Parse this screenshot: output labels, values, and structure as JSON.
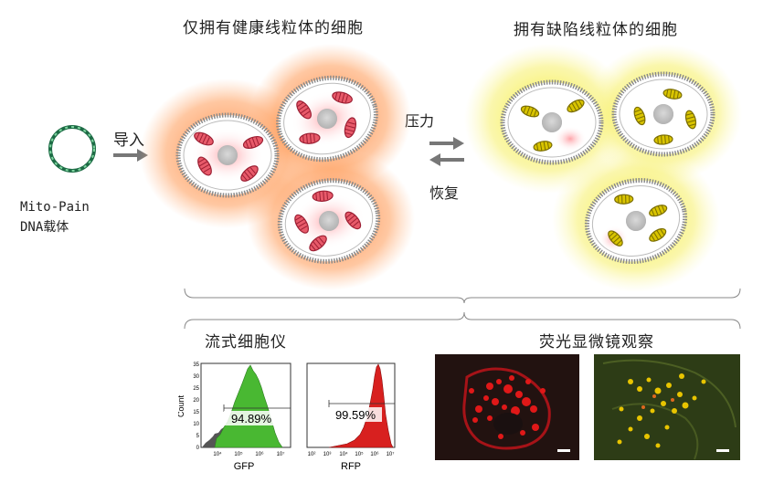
{
  "top": {
    "healthy_title": "仅拥有健康线粒体的细胞",
    "defective_title": "拥有缺陷线粒体的细胞",
    "vector_name": "Mito-Pain",
    "vector_type": "DNA载体",
    "import_label": "导入",
    "stress_label": "压力",
    "recover_label": "恢复"
  },
  "bottom": {
    "flow_title": "流式细胞仪",
    "micro_title": "荧光显微镜观察",
    "gfp": {
      "percent": "94.89%",
      "xlabel": "GFP",
      "ylabel": "Count",
      "yticks": [
        "0",
        "5",
        "10",
        "15",
        "20",
        "25",
        "30",
        "35"
      ],
      "xticks": [
        "10⁴",
        "10⁵",
        "10⁶",
        "10⁷"
      ]
    },
    "rfp": {
      "percent": "99.59%",
      "xlabel": "RFP",
      "xticks": [
        "10²",
        "10³",
        "10⁴",
        "10⁵",
        "10⁶",
        "10⁷"
      ]
    }
  },
  "colors": {
    "healthy_glow": "#ff8a3d",
    "defective_glow": "#f5ef3a",
    "gfp_fill": "#49b832",
    "rfp_fill": "#d8201f",
    "mito_red": "#e04a5a",
    "mito_yellow": "#c8b400"
  }
}
